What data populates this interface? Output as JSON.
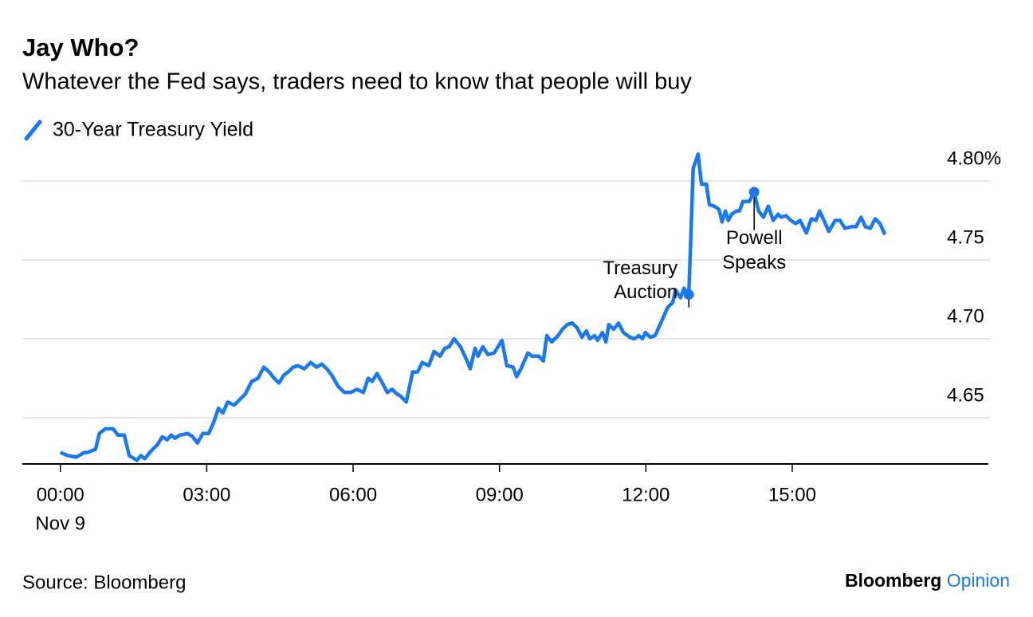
{
  "chart_data": {
    "type": "line",
    "title": "Jay Who?",
    "subtitle": "Whatever the Fed says, traders need to know that people will buy",
    "x": [
      0,
      0.15,
      0.33,
      0.49,
      0.56,
      0.72,
      0.8,
      0.92,
      1.08,
      1.18,
      1.31,
      1.41,
      1.57,
      1.65,
      1.73,
      1.86,
      1.99,
      2.09,
      2.19,
      2.27,
      2.35,
      2.45,
      2.61,
      2.71,
      2.81,
      2.92,
      3.04,
      3.14,
      3.24,
      3.33,
      3.43,
      3.56,
      3.66,
      3.79,
      3.92,
      4.05,
      4.17,
      4.28,
      4.38,
      4.48,
      4.58,
      4.67,
      4.77,
      4.87,
      5.0,
      5.13,
      5.25,
      5.36,
      5.46,
      5.56,
      5.69,
      5.82,
      5.95,
      6.08,
      6.21,
      6.31,
      6.39,
      6.49,
      6.6,
      6.7,
      6.8,
      6.9,
      6.96,
      7.09,
      7.22,
      7.32,
      7.42,
      7.55,
      7.66,
      7.78,
      7.88,
      7.97,
      8.07,
      8.2,
      8.32,
      8.4,
      8.5,
      8.56,
      8.66,
      8.76,
      8.89,
      9.05,
      9.15,
      9.28,
      9.35,
      9.44,
      9.58,
      9.67,
      9.8,
      9.9,
      9.97,
      10.07,
      10.2,
      10.29,
      10.39,
      10.49,
      10.59,
      10.69,
      10.78,
      10.85,
      10.95,
      11.01,
      11.11,
      11.18,
      11.24,
      11.34,
      11.44,
      11.54,
      11.67,
      11.76,
      11.86,
      11.93,
      11.99,
      12.09,
      12.19,
      12.32,
      12.45,
      12.55,
      12.61,
      12.71,
      12.78,
      12.88,
      12.97,
      13.07,
      13.14,
      13.24,
      13.3,
      13.4,
      13.5,
      13.56,
      13.63,
      13.69,
      13.76,
      13.86,
      13.92,
      13.99,
      14.12,
      14.22,
      14.31,
      14.41,
      14.51,
      14.61,
      14.71,
      14.77,
      14.87,
      14.97,
      15.07,
      15.16,
      15.29,
      15.39,
      15.49,
      15.56,
      15.65,
      15.75,
      15.88,
      15.98,
      16.08,
      16.21,
      16.31,
      16.41,
      16.5,
      16.6,
      16.7,
      16.8,
      16.9
    ],
    "series": [
      {
        "name": "30-Year Treasury Yield",
        "color": "#1a78f0",
        "values": [
          4.628,
          4.626,
          4.625,
          4.628,
          4.628,
          4.63,
          4.64,
          4.643,
          4.643,
          4.639,
          4.639,
          4.626,
          4.623,
          4.626,
          4.624,
          4.629,
          4.633,
          4.638,
          4.636,
          4.639,
          4.637,
          4.639,
          4.64,
          4.638,
          4.634,
          4.64,
          4.64,
          4.647,
          4.656,
          4.653,
          4.66,
          4.658,
          4.661,
          4.665,
          4.673,
          4.675,
          4.682,
          4.679,
          4.675,
          4.672,
          4.677,
          4.679,
          4.682,
          4.683,
          4.681,
          4.685,
          4.682,
          4.684,
          4.681,
          4.677,
          4.67,
          4.666,
          4.666,
          4.668,
          4.666,
          4.675,
          4.673,
          4.678,
          4.672,
          4.666,
          4.668,
          4.665,
          4.664,
          4.66,
          4.679,
          4.679,
          4.685,
          4.683,
          4.692,
          4.689,
          4.694,
          4.695,
          4.7,
          4.695,
          4.687,
          4.681,
          4.694,
          4.689,
          4.695,
          4.69,
          4.691,
          4.699,
          4.683,
          4.682,
          4.676,
          4.681,
          4.691,
          4.689,
          4.689,
          4.686,
          4.702,
          4.698,
          4.702,
          4.706,
          4.709,
          4.71,
          4.707,
          4.701,
          4.705,
          4.7,
          4.702,
          4.699,
          4.704,
          4.698,
          4.709,
          4.706,
          4.71,
          4.704,
          4.701,
          4.7,
          4.702,
          4.7,
          4.704,
          4.701,
          4.702,
          4.711,
          4.72,
          4.723,
          4.731,
          4.726,
          4.732,
          4.728,
          4.808,
          4.817,
          4.798,
          4.798,
          4.785,
          4.784,
          4.782,
          4.774,
          4.781,
          4.775,
          4.779,
          4.781,
          4.781,
          4.787,
          4.787,
          4.793,
          4.781,
          4.777,
          4.784,
          4.775,
          4.779,
          4.777,
          4.778,
          4.775,
          4.773,
          4.775,
          4.767,
          4.776,
          4.775,
          4.781,
          4.775,
          4.768,
          4.775,
          4.775,
          4.77,
          4.771,
          4.771,
          4.777,
          4.771,
          4.77,
          4.776,
          4.773,
          4.766
        ]
      }
    ],
    "xlim": [
      -0.78,
      19.02
    ],
    "xticks": [
      {
        "value": 0,
        "label": "00:00"
      },
      {
        "value": 3,
        "label": "03:00"
      },
      {
        "value": 6,
        "label": "06:00"
      },
      {
        "value": 9,
        "label": "09:00"
      },
      {
        "value": 12,
        "label": "12:00"
      },
      {
        "value": 15,
        "label": "15:00"
      }
    ],
    "date_label": "Nov 9",
    "ylim": [
      4.62,
      4.82
    ],
    "yticks": [
      {
        "value": 4.8,
        "label": "4.80%"
      },
      {
        "value": 4.75,
        "label": "4.75"
      },
      {
        "value": 4.7,
        "label": "4.70"
      },
      {
        "value": 4.65,
        "label": "4.65"
      }
    ],
    "grid": true,
    "annotations": [
      {
        "lines": [
          "Treasury",
          "Auction"
        ],
        "x": 12.88,
        "y": 4.728
      },
      {
        "lines": [
          "Powell",
          "Speaks"
        ],
        "x": 14.22,
        "y": 4.793
      }
    ],
    "source": "Source: Bloomberg",
    "brand": "Bloomberg",
    "brand_suffix": "Opinion"
  }
}
